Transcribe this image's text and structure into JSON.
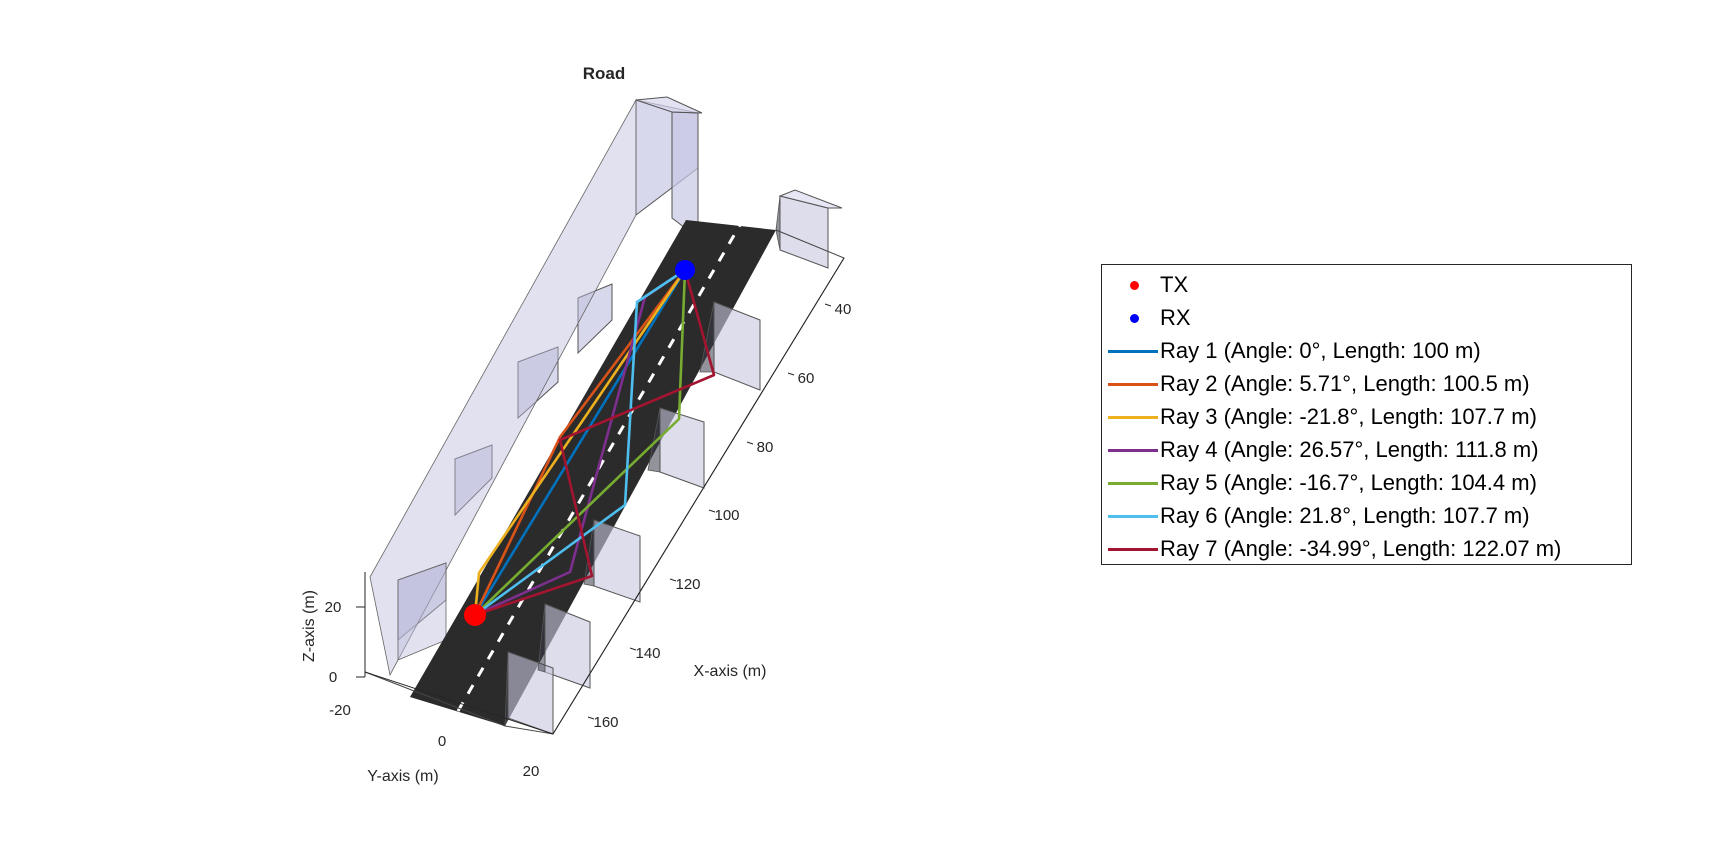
{
  "chart_data": {
    "type": "line",
    "title": "Road",
    "xlabel": "X-axis (m)",
    "ylabel": "Y-axis (m)",
    "zlabel": "Z-axis (m)",
    "x_ticks": [
      "40",
      "60",
      "80",
      "100",
      "120",
      "140",
      "160"
    ],
    "y_ticks": [
      "-20",
      "0",
      "20"
    ],
    "z_ticks": [
      "0",
      "20"
    ],
    "grid": false,
    "legend_position": "right",
    "tx": {
      "name": "TX",
      "color": "#ff0000"
    },
    "rx": {
      "name": "RX",
      "color": "#0000ff"
    },
    "series": [
      {
        "name": "Ray 1 (Angle: 0°, Length: 100 m)",
        "color": "#0072bd"
      },
      {
        "name": "Ray 2 (Angle: 5.71°, Length: 100.5 m)",
        "color": "#d95319"
      },
      {
        "name": "Ray 3 (Angle: -21.8°, Length: 107.7 m)",
        "color": "#edb120"
      },
      {
        "name": "Ray 4 (Angle: 26.57°, Length: 111.8 m)",
        "color": "#7e2f8e"
      },
      {
        "name": "Ray 5 (Angle: -16.7°, Length: 104.4 m)",
        "color": "#77ac30"
      },
      {
        "name": "Ray 6 (Angle: 21.8°, Length: 107.7 m)",
        "color": "#4dbeee"
      },
      {
        "name": "Ray 7 (Angle: -34.99°, Length: 122.07 m)",
        "color": "#a2142f"
      }
    ]
  }
}
